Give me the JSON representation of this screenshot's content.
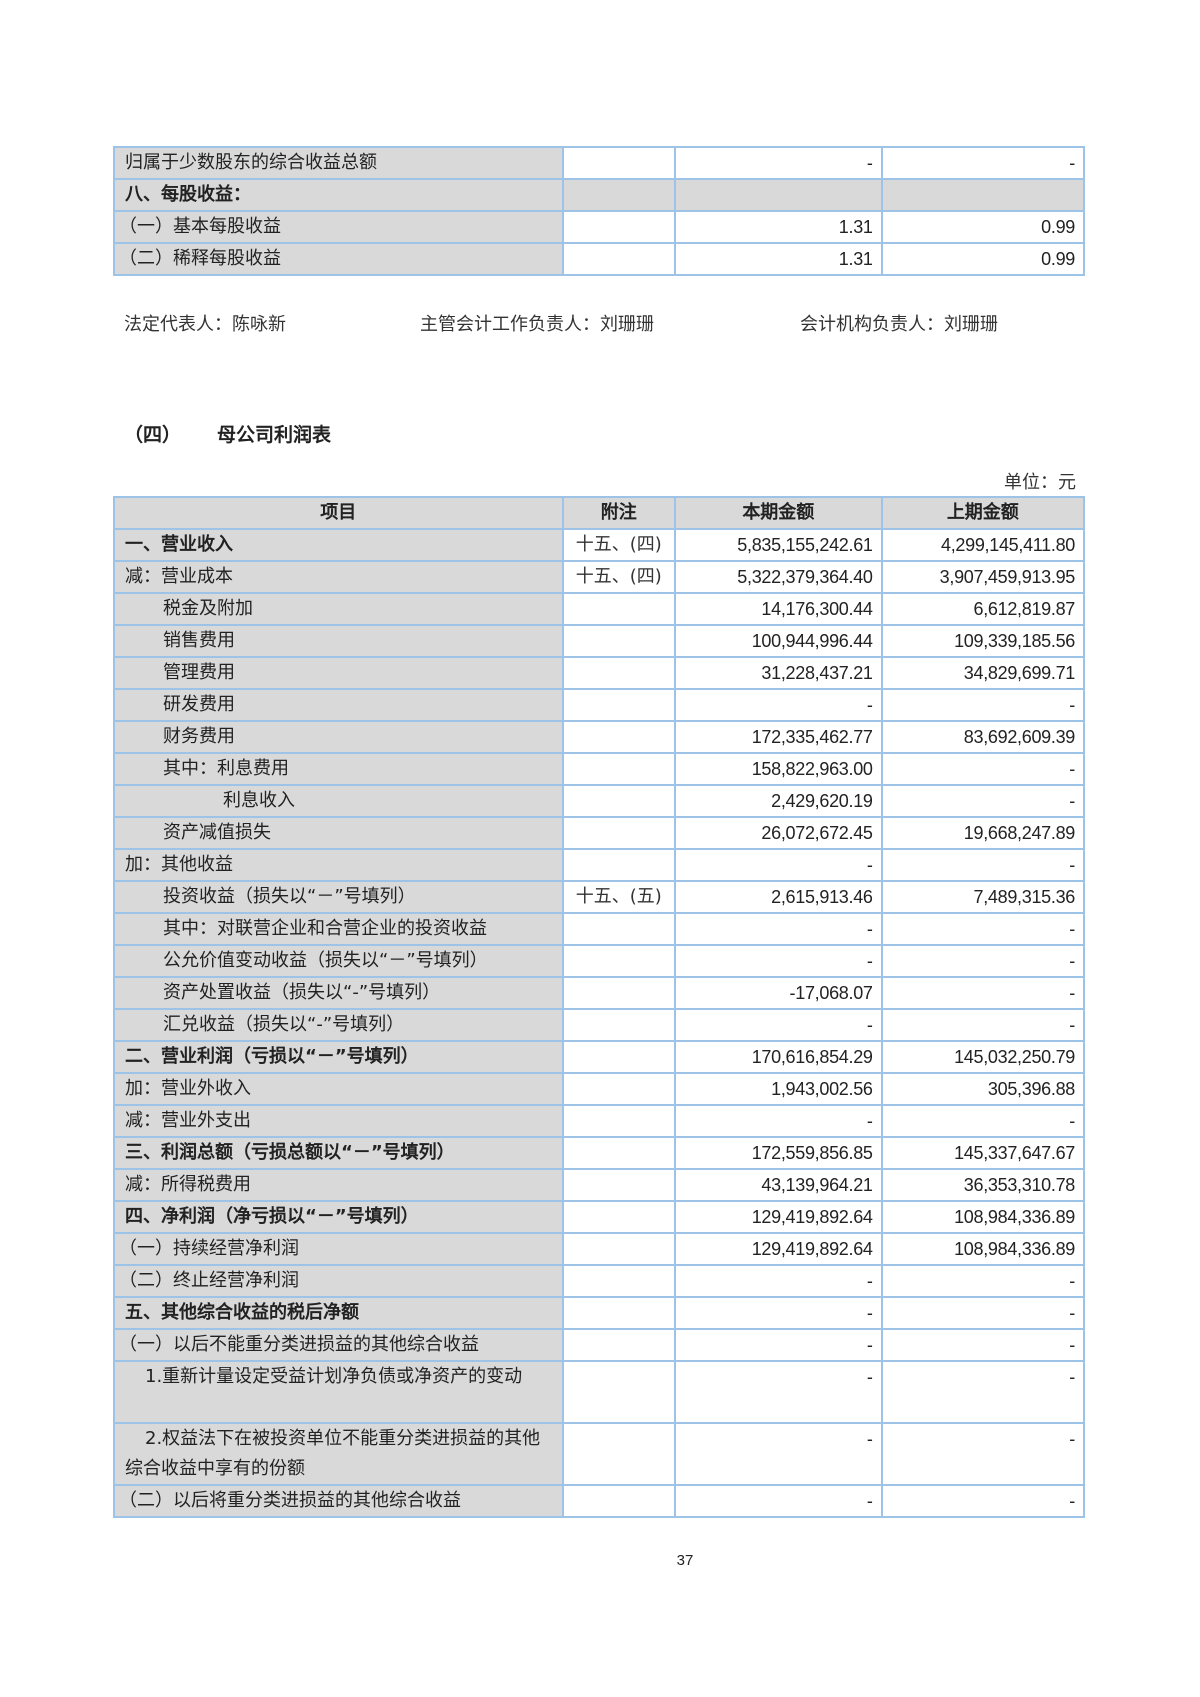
{
  "top_table": {
    "rows": [
      {
        "item": "归属于少数股东的综合收益总额",
        "note": "",
        "current": "-",
        "prior": "-",
        "level": 0,
        "bold": false,
        "gray": false
      },
      {
        "item": "八、每股收益：",
        "note": "",
        "current": "",
        "prior": "",
        "level": 0,
        "bold": true,
        "gray": true
      },
      {
        "item": "（一）基本每股收益",
        "note": "",
        "current": "1.31",
        "prior": "0.99",
        "level": 0,
        "bold": false,
        "gray": false
      },
      {
        "item": "（二）稀释每股收益",
        "note": "",
        "current": "1.31",
        "prior": "0.99",
        "level": 0,
        "bold": false,
        "gray": false
      }
    ]
  },
  "signatures": {
    "legal_rep": "法定代表人：陈咏新",
    "accounting_head": "主管会计工作负责人：刘珊珊",
    "accounting_dept_head": "会计机构负责人：刘珊珊"
  },
  "section": {
    "number": "（四）",
    "title": "母公司利润表"
  },
  "unit": "单位：元",
  "main_table": {
    "headers": {
      "item": "项目",
      "note": "附注",
      "current": "本期金额",
      "prior": "上期金额"
    },
    "rows": [
      {
        "item": "一、营业收入",
        "note": "十五、(四)",
        "current": "5,835,155,242.61",
        "prior": "4,299,145,411.80",
        "level": 0,
        "bold": true
      },
      {
        "item": "减：营业成本",
        "note": "十五、(四)",
        "current": "5,322,379,364.40",
        "prior": "3,907,459,913.95",
        "level": 0
      },
      {
        "item": "税金及附加",
        "note": "",
        "current": "14,176,300.44",
        "prior": "6,612,819.87",
        "level": 1
      },
      {
        "item": "销售费用",
        "note": "",
        "current": "100,944,996.44",
        "prior": "109,339,185.56",
        "level": 1
      },
      {
        "item": "管理费用",
        "note": "",
        "current": "31,228,437.21",
        "prior": "34,829,699.71",
        "level": 1
      },
      {
        "item": "研发费用",
        "note": "",
        "current": "-",
        "prior": "-",
        "level": 1
      },
      {
        "item": "财务费用",
        "note": "",
        "current": "172,335,462.77",
        "prior": "83,692,609.39",
        "level": 1
      },
      {
        "item": "其中：利息费用",
        "note": "",
        "current": "158,822,963.00",
        "prior": "-",
        "level": 1
      },
      {
        "item": "利息收入",
        "note": "",
        "current": "2,429,620.19",
        "prior": "-",
        "level": 2
      },
      {
        "item": "资产减值损失",
        "note": "",
        "current": "26,072,672.45",
        "prior": "19,668,247.89",
        "level": 1
      },
      {
        "item": "加：其他收益",
        "note": "",
        "current": "-",
        "prior": "-",
        "level": 0
      },
      {
        "item": "投资收益（损失以“－”号填列）",
        "note": "十五、(五)",
        "current": "2,615,913.46",
        "prior": "7,489,315.36",
        "level": 1
      },
      {
        "item": "其中：对联营企业和合营企业的投资收益",
        "note": "",
        "current": "-",
        "prior": "-",
        "level": 1
      },
      {
        "item": "公允价值变动收益（损失以“－”号填列）",
        "note": "",
        "current": "-",
        "prior": "-",
        "level": 1
      },
      {
        "item": "资产处置收益（损失以“-”号填列）",
        "note": "",
        "current": "-17,068.07",
        "prior": "-",
        "level": 1
      },
      {
        "item": "汇兑收益（损失以“-”号填列）",
        "note": "",
        "current": "-",
        "prior": "-",
        "level": 1
      },
      {
        "item": "二、营业利润（亏损以“－”号填列）",
        "note": "",
        "current": "170,616,854.29",
        "prior": "145,032,250.79",
        "level": 0,
        "bold": true
      },
      {
        "item": "加：营业外收入",
        "note": "",
        "current": "1,943,002.56",
        "prior": "305,396.88",
        "level": 0
      },
      {
        "item": "减：营业外支出",
        "note": "",
        "current": "-",
        "prior": "-",
        "level": 0
      },
      {
        "item": "三、利润总额（亏损总额以“－”号填列）",
        "note": "",
        "current": "172,559,856.85",
        "prior": "145,337,647.67",
        "level": 0,
        "bold": true
      },
      {
        "item": "减：所得税费用",
        "note": "",
        "current": "43,139,964.21",
        "prior": "36,353,310.78",
        "level": 0
      },
      {
        "item": "四、净利润（净亏损以“－”号填列）",
        "note": "",
        "current": "129,419,892.64",
        "prior": "108,984,336.89",
        "level": 0,
        "bold": true
      },
      {
        "item": "（一）持续经营净利润",
        "note": "",
        "current": "129,419,892.64",
        "prior": "108,984,336.89",
        "level": 0
      },
      {
        "item": "（二）终止经营净利润",
        "note": "",
        "current": "-",
        "prior": "-",
        "level": 0
      },
      {
        "item": "五、其他综合收益的税后净额",
        "note": "",
        "current": "-",
        "prior": "-",
        "level": 0,
        "bold": true
      },
      {
        "item": "（一）以后不能重分类进损益的其他综合收益",
        "note": "",
        "current": "-",
        "prior": "-",
        "level": 0
      },
      {
        "item": "1.重新计量设定受益计划净负债或净资产的变动",
        "note": "",
        "current": "-",
        "prior": "-",
        "level": 0,
        "tall": true
      },
      {
        "item": "2.权益法下在被投资单位不能重分类进损益的其他综合收益中享有的份额",
        "note": "",
        "current": "-",
        "prior": "-",
        "level": 0,
        "tall": true
      },
      {
        "item": "（二）以后将重分类进损益的其他综合收益",
        "note": "",
        "current": "-",
        "prior": "-",
        "level": 0
      }
    ]
  },
  "page_number": "37"
}
